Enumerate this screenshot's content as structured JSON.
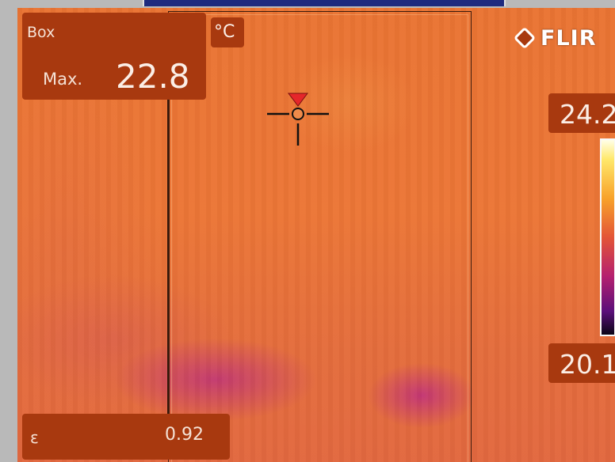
{
  "measurement": {
    "mode": "Box",
    "stat_label": "Max.",
    "value": "22.8"
  },
  "unit": "°C",
  "emissivity": {
    "symbol": "ε",
    "value": "0.92"
  },
  "scale": {
    "max": "24.2",
    "min": "20.1"
  },
  "brand": {
    "logo_text": "FLIR"
  },
  "colors": {
    "overlay_panel": "#a8390f",
    "marker": "#e5262a",
    "accent_bar": "#1d2a7e"
  },
  "icons": {
    "spot": "crosshair-marker-icon",
    "logo": "flir-emblem-icon"
  }
}
